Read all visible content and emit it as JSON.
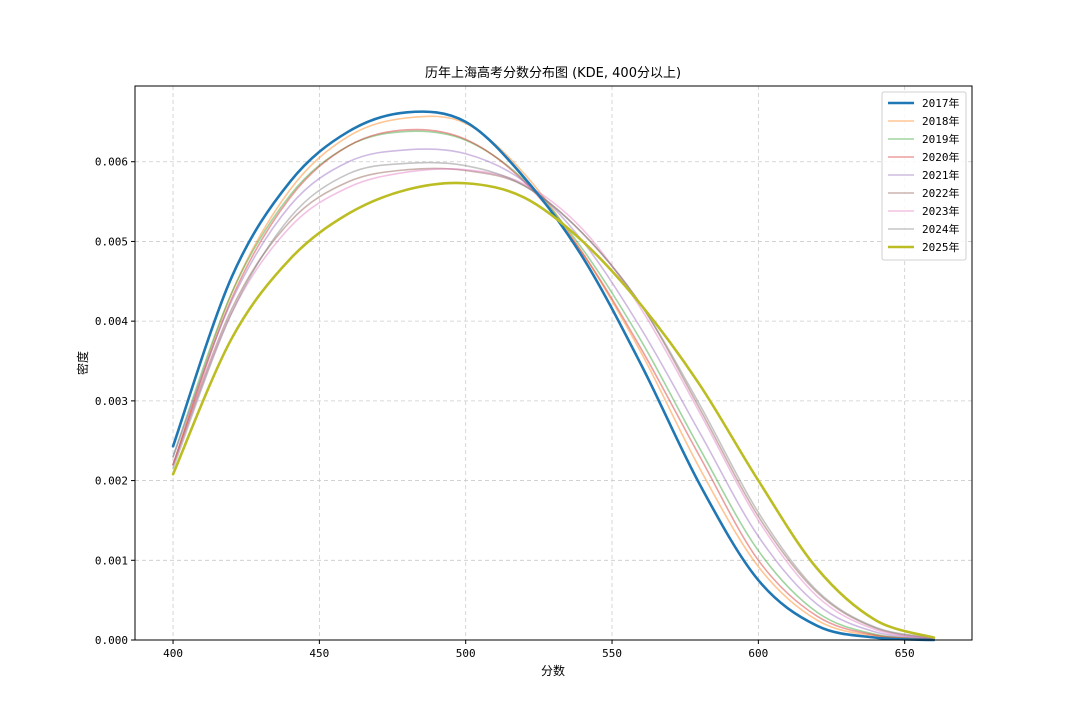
{
  "chart_data": {
    "type": "line",
    "title": "历年上海高考分数分布图 (KDE, 400分以上)",
    "xlabel": "分数",
    "ylabel": "密度",
    "xlim": [
      387,
      673
    ],
    "ylim": [
      0,
      0.00695
    ],
    "xticks": [
      400,
      450,
      500,
      550,
      600,
      650
    ],
    "xtick_labels": [
      "400",
      "450",
      "500",
      "550",
      "600",
      "650"
    ],
    "yticks": [
      0,
      0.001,
      0.002,
      0.003,
      0.004,
      0.005,
      0.006
    ],
    "ytick_labels": [
      "0.000",
      "0.001",
      "0.002",
      "0.003",
      "0.004",
      "0.005",
      "0.006"
    ],
    "grid": true,
    "legend_position": "top-right",
    "x": [
      400,
      420,
      440,
      460,
      480,
      500,
      520,
      540,
      560,
      580,
      600,
      620,
      640,
      660
    ],
    "series": [
      {
        "name": "2017年",
        "color": "#1f77b4",
        "highlight": true,
        "values": [
          0.00243,
          0.00455,
          0.00575,
          0.00638,
          0.00662,
          0.0065,
          0.0058,
          0.0048,
          0.00345,
          0.00195,
          0.00075,
          0.00018,
          3e-05,
          0.0
        ]
      },
      {
        "name": "2018年",
        "color": "#ff7f0e",
        "highlight": false,
        "values": [
          0.0022,
          0.00435,
          0.00565,
          0.00632,
          0.00655,
          0.00648,
          0.00585,
          0.00485,
          0.0036,
          0.00215,
          0.00092,
          0.00025,
          5e-05,
          1e-05
        ]
      },
      {
        "name": "2019年",
        "color": "#2ca02c",
        "highlight": false,
        "values": [
          0.0023,
          0.00435,
          0.00558,
          0.0062,
          0.00638,
          0.00627,
          0.00577,
          0.0049,
          0.00375,
          0.0024,
          0.00112,
          0.00035,
          7e-05,
          1e-05
        ]
      },
      {
        "name": "2020年",
        "color": "#d62728",
        "highlight": false,
        "values": [
          0.0022,
          0.00428,
          0.00555,
          0.0062,
          0.0064,
          0.00628,
          0.00575,
          0.00485,
          0.00365,
          0.0023,
          0.001,
          0.0003,
          6e-05,
          1e-05
        ]
      },
      {
        "name": "2021年",
        "color": "#9467bd",
        "highlight": false,
        "values": [
          0.0023,
          0.00425,
          0.00545,
          0.006,
          0.00615,
          0.0061,
          0.00575,
          0.005,
          0.0039,
          0.0026,
          0.0013,
          0.00045,
          0.0001,
          2e-05
        ]
      },
      {
        "name": "2022年",
        "color": "#8c564b",
        "highlight": false,
        "values": [
          0.0022,
          0.00415,
          0.00525,
          0.00575,
          0.0059,
          0.00589,
          0.0057,
          0.0051,
          0.0042,
          0.0029,
          0.00155,
          0.0006,
          0.00015,
          2e-05
        ]
      },
      {
        "name": "2023年",
        "color": "#e377c2",
        "highlight": false,
        "values": [
          0.0022,
          0.0041,
          0.00518,
          0.00568,
          0.00587,
          0.0059,
          0.00572,
          0.00515,
          0.00415,
          0.00285,
          0.0015,
          0.00055,
          0.00013,
          2e-05
        ]
      },
      {
        "name": "2024年",
        "color": "#7f7f7f",
        "highlight": false,
        "values": [
          0.00215,
          0.0041,
          0.0053,
          0.00585,
          0.00598,
          0.00595,
          0.0057,
          0.0051,
          0.0042,
          0.00295,
          0.0016,
          0.00062,
          0.00016,
          3e-05
        ]
      },
      {
        "name": "2025年",
        "color": "#bcbd22",
        "highlight": true,
        "values": [
          0.00208,
          0.00378,
          0.00478,
          0.00535,
          0.00565,
          0.00573,
          0.00555,
          0.005,
          0.0042,
          0.0032,
          0.002,
          0.0009,
          0.00025,
          3e-05
        ]
      }
    ]
  }
}
